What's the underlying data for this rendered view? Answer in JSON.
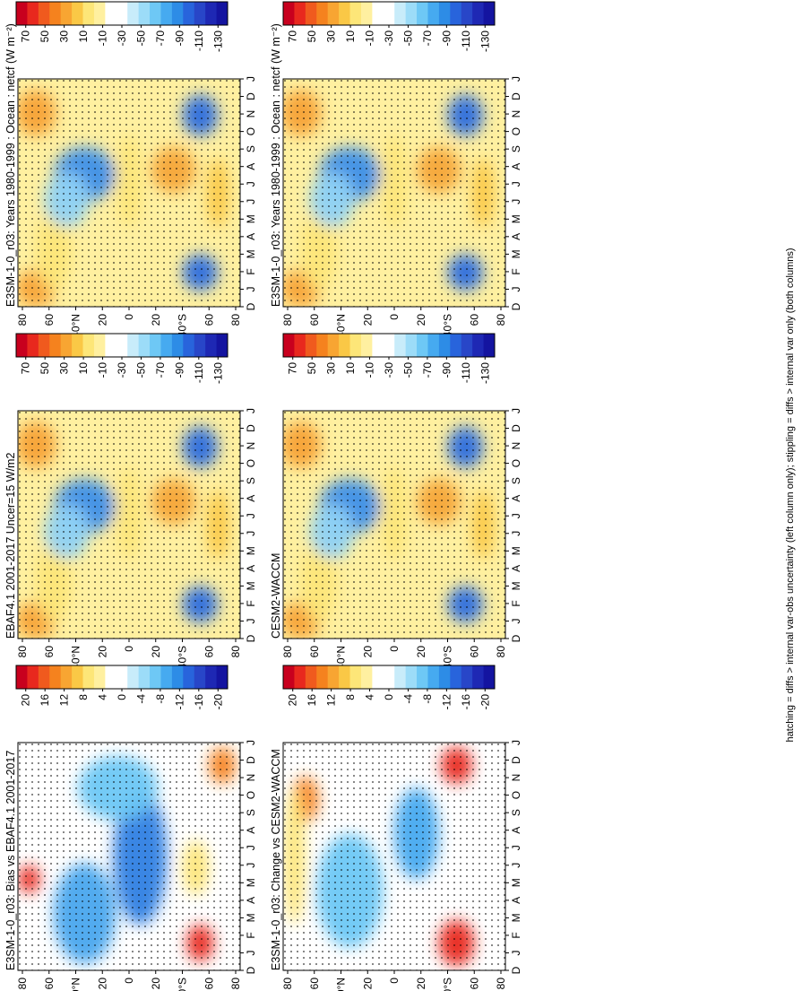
{
  "footnote": "hatching = diffs > internal var-obs uncertainty (left column only); stippling = diffs > internal var only (both columns)",
  "months": [
    "D",
    "J",
    "F",
    "M",
    "A",
    "M",
    "J",
    "J",
    "A",
    "S",
    "O",
    "N",
    "D",
    "J"
  ],
  "lat_ticks": [
    "80",
    "60",
    "40",
    "20",
    "0",
    "20",
    "40",
    "60",
    "80"
  ],
  "lat_ticks_with_units": [
    "80",
    "60",
    "40°N",
    "20",
    "0",
    "20",
    "40°S",
    "60",
    "80"
  ],
  "panels": [
    {
      "id": "p-top-left",
      "title": "E3SM-1-0_r03: Years 1980-1999 : Ocean : netcf (W m⁻²)",
      "kind": "abs"
    },
    {
      "id": "p-top-right",
      "title": "E3SM-1-0_r03: Years 1980-1999 : Ocean : netcf (W m⁻²)",
      "kind": "abs"
    },
    {
      "id": "p-mid-left",
      "title": "EBAF4.1 2001-2017 Uncer=15 W/m2",
      "kind": "abs"
    },
    {
      "id": "p-mid-right",
      "title": "CESM2-WACCM",
      "kind": "abs"
    },
    {
      "id": "p-bot-left",
      "title": "E3SM-1-0_r03: Bias vs EBAF4.1 2001-2017",
      "kind": "diff"
    },
    {
      "id": "p-bot-right",
      "title": "E3SM-1-0_r03: Change vs CESM2-WACCM",
      "kind": "diff"
    }
  ],
  "colorbars": {
    "abs": {
      "labels": [
        "70",
        "50",
        "30",
        "10",
        "-10",
        "-30",
        "-50",
        "-70",
        "-90",
        "-110",
        "-130"
      ],
      "colors": [
        "#c8001e",
        "#e8281e",
        "#f05a1e",
        "#f5821e",
        "#f8a532",
        "#fac846",
        "#fde678",
        "#fff0a0",
        "#ffffff",
        "#ffffff",
        "#c8ecfa",
        "#9cdcf8",
        "#6ec8f5",
        "#46aaf0",
        "#2d8ce6",
        "#2864dc",
        "#2846c8",
        "#1e28b4",
        "#1414a0"
      ]
    },
    "diff": {
      "labels": [
        "20",
        "16",
        "12",
        "8",
        "4",
        "0",
        "-4",
        "-8",
        "-12",
        "-16",
        "-20"
      ],
      "colors": [
        "#c8001e",
        "#e8281e",
        "#f05a1e",
        "#f5821e",
        "#f8a532",
        "#fac846",
        "#fde678",
        "#fff0a0",
        "#ffffff",
        "#ffffff",
        "#c8ecfa",
        "#9cdcf8",
        "#6ec8f5",
        "#46aaf0",
        "#2d8ce6",
        "#2864dc",
        "#2846c8",
        "#1e28b4",
        "#1414a0"
      ]
    }
  },
  "chart_data": [
    {
      "type": "heatmap",
      "panel": "p-top-left",
      "title": "E3SM-1-0_r03: Years 1980-1999 : Ocean : netcf (W m⁻²)",
      "x": [
        "D",
        "J",
        "F",
        "M",
        "A",
        "M",
        "J",
        "J",
        "A",
        "S",
        "O",
        "N",
        "D",
        "J"
      ],
      "y": [
        "80N",
        "60N",
        "40N",
        "20N",
        "0",
        "20S",
        "40S",
        "60S",
        "80S"
      ],
      "clim_range": [
        -130,
        70
      ]
    },
    {
      "type": "heatmap",
      "panel": "p-top-right",
      "title": "E3SM-1-0_r03: Years 1980-1999 : Ocean : netcf (W m⁻²)",
      "x": [
        "D",
        "J",
        "F",
        "M",
        "A",
        "M",
        "J",
        "J",
        "A",
        "S",
        "O",
        "N",
        "D",
        "J"
      ],
      "y": [
        "80N",
        "60N",
        "40N",
        "20N",
        "0",
        "20S",
        "40S",
        "60S",
        "80S"
      ],
      "clim_range": [
        -130,
        70
      ]
    },
    {
      "type": "heatmap",
      "panel": "p-mid-left",
      "title": "EBAF4.1 2001-2017 Uncer=15 W/m2",
      "x": [
        "D",
        "J",
        "F",
        "M",
        "A",
        "M",
        "J",
        "J",
        "A",
        "S",
        "O",
        "N",
        "D",
        "J"
      ],
      "y": [
        "80N",
        "60N",
        "40N",
        "20N",
        "0",
        "20S",
        "40S",
        "60S",
        "80S"
      ],
      "clim_range": [
        -130,
        70
      ]
    },
    {
      "type": "heatmap",
      "panel": "p-mid-right",
      "title": "CESM2-WACCM",
      "x": [
        "D",
        "J",
        "F",
        "M",
        "A",
        "M",
        "J",
        "J",
        "A",
        "S",
        "O",
        "N",
        "D",
        "J"
      ],
      "y": [
        "80N",
        "60N",
        "40N",
        "20N",
        "0",
        "20S",
        "40S",
        "60S",
        "80S"
      ],
      "clim_range": [
        -130,
        70
      ]
    },
    {
      "type": "heatmap",
      "panel": "p-bot-left",
      "title": "E3SM-1-0_r03: Bias vs EBAF4.1 2001-2017",
      "x": [
        "D",
        "J",
        "F",
        "M",
        "A",
        "M",
        "J",
        "J",
        "A",
        "S",
        "O",
        "N",
        "D",
        "J"
      ],
      "y": [
        "80N",
        "60N",
        "40N",
        "20N",
        "0",
        "20S",
        "40S",
        "60S",
        "80S"
      ],
      "clim_range": [
        -20,
        20
      ]
    },
    {
      "type": "heatmap",
      "panel": "p-bot-right",
      "title": "E3SM-1-0_r03: Change vs CESM2-WACCM",
      "x": [
        "D",
        "J",
        "F",
        "M",
        "A",
        "M",
        "J",
        "J",
        "A",
        "S",
        "O",
        "N",
        "D",
        "J"
      ],
      "y": [
        "80N",
        "60N",
        "40N",
        "20N",
        "0",
        "20S",
        "40S",
        "60S",
        "80S"
      ],
      "clim_range": [
        -20,
        20
      ]
    }
  ]
}
